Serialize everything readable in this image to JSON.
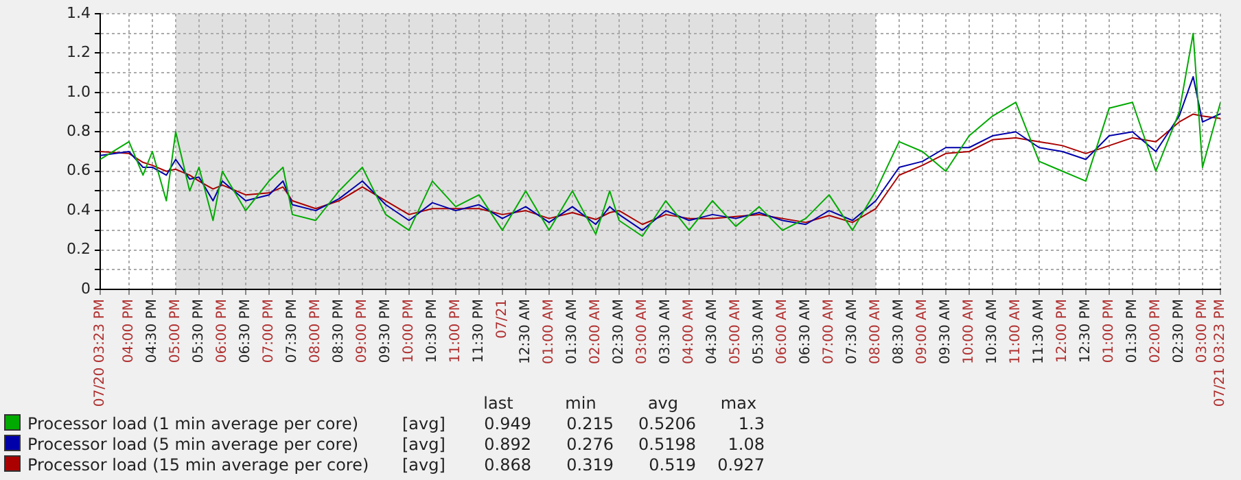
{
  "chart_data": {
    "type": "line",
    "x": [
      "--07-20T15:23",
      "--07-20T16:00",
      "--07-20T16:18",
      "--07-20T16:30",
      "--07-20T16:48",
      "--07-20T17:00",
      "--07-20T17:18",
      "--07-20T17:30",
      "--07-20T17:48",
      "--07-20T18:00",
      "--07-20T18:30",
      "--07-20T19:00",
      "--07-20T19:18",
      "--07-20T19:30",
      "--07-20T20:00",
      "--07-20T20:30",
      "--07-20T21:00",
      "--07-20T21:30",
      "--07-20T22:00",
      "--07-20T22:30",
      "--07-20T23:00",
      "--07-20T23:30",
      "--07-21T00:00",
      "--07-21T00:30",
      "--07-21T01:00",
      "--07-21T01:30",
      "--07-21T02:00",
      "--07-21T02:18",
      "--07-21T02:30",
      "--07-21T03:00",
      "--07-21T03:30",
      "--07-21T04:00",
      "--07-21T04:30",
      "--07-21T05:00",
      "--07-21T05:30",
      "--07-21T06:00",
      "--07-21T06:30",
      "--07-21T07:00",
      "--07-21T07:30",
      "--07-21T08:00",
      "--07-21T08:30",
      "--07-21T09:00",
      "--07-21T09:30",
      "--07-21T10:00",
      "--07-21T10:30",
      "--07-21T11:00",
      "--07-21T11:30",
      "--07-21T12:00",
      "--07-21T12:30",
      "--07-21T13:00",
      "--07-21T13:30",
      "--07-21T14:00",
      "--07-21T14:30",
      "--07-21T14:48",
      "--07-21T15:00",
      "--07-21T15:23"
    ],
    "series": [
      {
        "name": "Processor load (1 min average per core)",
        "color": "#00aa00",
        "values": [
          0.66,
          0.75,
          0.58,
          0.7,
          0.45,
          0.8,
          0.5,
          0.62,
          0.35,
          0.6,
          0.4,
          0.55,
          0.62,
          0.38,
          0.35,
          0.5,
          0.62,
          0.38,
          0.3,
          0.55,
          0.42,
          0.48,
          0.3,
          0.5,
          0.3,
          0.5,
          0.28,
          0.5,
          0.35,
          0.27,
          0.45,
          0.3,
          0.45,
          0.32,
          0.42,
          0.3,
          0.36,
          0.48,
          0.3,
          0.5,
          0.75,
          0.7,
          0.6,
          0.78,
          0.88,
          0.95,
          0.65,
          0.6,
          0.55,
          0.92,
          0.95,
          0.6,
          0.9,
          1.3,
          0.62,
          0.949
        ]
      },
      {
        "name": "Processor load (5 min average per core)",
        "color": "#0000aa",
        "values": [
          0.68,
          0.7,
          0.62,
          0.62,
          0.58,
          0.66,
          0.56,
          0.57,
          0.45,
          0.55,
          0.45,
          0.48,
          0.55,
          0.43,
          0.4,
          0.46,
          0.55,
          0.43,
          0.35,
          0.44,
          0.4,
          0.43,
          0.36,
          0.42,
          0.34,
          0.42,
          0.33,
          0.42,
          0.38,
          0.3,
          0.4,
          0.35,
          0.38,
          0.36,
          0.39,
          0.35,
          0.33,
          0.4,
          0.35,
          0.45,
          0.62,
          0.65,
          0.72,
          0.72,
          0.78,
          0.8,
          0.72,
          0.7,
          0.66,
          0.78,
          0.8,
          0.7,
          0.88,
          1.08,
          0.85,
          0.892
        ]
      },
      {
        "name": "Processor load (15 min average per core)",
        "color": "#aa0000",
        "values": [
          0.7,
          0.69,
          0.645,
          0.63,
          0.6,
          0.61,
          0.58,
          0.55,
          0.51,
          0.53,
          0.48,
          0.49,
          0.52,
          0.45,
          0.41,
          0.45,
          0.52,
          0.45,
          0.38,
          0.41,
          0.41,
          0.41,
          0.38,
          0.4,
          0.36,
          0.39,
          0.355,
          0.39,
          0.4,
          0.33,
          0.38,
          0.36,
          0.36,
          0.37,
          0.38,
          0.36,
          0.34,
          0.375,
          0.34,
          0.41,
          0.58,
          0.63,
          0.69,
          0.7,
          0.76,
          0.77,
          0.75,
          0.73,
          0.69,
          0.73,
          0.77,
          0.75,
          0.85,
          0.89,
          0.88,
          0.868
        ]
      }
    ],
    "xlim": [
      "--07-20T15:23",
      "--07-21T15:23"
    ],
    "xticks": [
      {
        "value": "--07-20T15:23",
        "label": "07/20 03:23 PM"
      },
      {
        "value": "--07-20T16:00",
        "label": "04:00 PM"
      },
      {
        "value": "--07-20T16:30",
        "label": "04:30 PM"
      },
      {
        "value": "--07-20T17:00",
        "label": "05:00 PM"
      },
      {
        "value": "--07-20T17:30",
        "label": "05:30 PM"
      },
      {
        "value": "--07-20T18:00",
        "label": "06:00 PM"
      },
      {
        "value": "--07-20T18:30",
        "label": "06:30 PM"
      },
      {
        "value": "--07-20T19:00",
        "label": "07:00 PM"
      },
      {
        "value": "--07-20T19:30",
        "label": "07:30 PM"
      },
      {
        "value": "--07-20T20:00",
        "label": "08:00 PM"
      },
      {
        "value": "--07-20T20:30",
        "label": "08:30 PM"
      },
      {
        "value": "--07-20T21:00",
        "label": "09:00 PM"
      },
      {
        "value": "--07-20T21:30",
        "label": "09:30 PM"
      },
      {
        "value": "--07-20T22:00",
        "label": "10:00 PM"
      },
      {
        "value": "--07-20T22:30",
        "label": "10:30 PM"
      },
      {
        "value": "--07-20T23:00",
        "label": "11:00 PM"
      },
      {
        "value": "--07-20T23:30",
        "label": "11:30 PM"
      },
      {
        "value": "--07-21T00:00",
        "label": "07/21"
      },
      {
        "value": "--07-21T00:30",
        "label": "12:30 AM"
      },
      {
        "value": "--07-21T01:00",
        "label": "01:00 AM"
      },
      {
        "value": "--07-21T01:30",
        "label": "01:30 AM"
      },
      {
        "value": "--07-21T02:00",
        "label": "02:00 AM"
      },
      {
        "value": "--07-21T02:30",
        "label": "02:30 AM"
      },
      {
        "value": "--07-21T03:00",
        "label": "03:00 AM"
      },
      {
        "value": "--07-21T03:30",
        "label": "03:30 AM"
      },
      {
        "value": "--07-21T04:00",
        "label": "04:00 AM"
      },
      {
        "value": "--07-21T04:30",
        "label": "04:30 AM"
      },
      {
        "value": "--07-21T05:00",
        "label": "05:00 AM"
      },
      {
        "value": "--07-21T05:30",
        "label": "05:30 AM"
      },
      {
        "value": "--07-21T06:00",
        "label": "06:00 AM"
      },
      {
        "value": "--07-21T06:30",
        "label": "06:30 AM"
      },
      {
        "value": "--07-21T07:00",
        "label": "07:00 AM"
      },
      {
        "value": "--07-21T07:30",
        "label": "07:30 AM"
      },
      {
        "value": "--07-21T08:00",
        "label": "08:00 AM"
      },
      {
        "value": "--07-21T08:30",
        "label": "08:30 AM"
      },
      {
        "value": "--07-21T09:00",
        "label": "09:00 AM"
      },
      {
        "value": "--07-21T09:30",
        "label": "09:30 AM"
      },
      {
        "value": "--07-21T10:00",
        "label": "10:00 AM"
      },
      {
        "value": "--07-21T10:30",
        "label": "10:30 AM"
      },
      {
        "value": "--07-21T11:00",
        "label": "11:00 AM"
      },
      {
        "value": "--07-21T11:30",
        "label": "11:30 AM"
      },
      {
        "value": "--07-21T12:00",
        "label": "12:00 PM"
      },
      {
        "value": "--07-21T12:30",
        "label": "12:30 PM"
      },
      {
        "value": "--07-21T13:00",
        "label": "01:00 PM"
      },
      {
        "value": "--07-21T13:30",
        "label": "01:30 PM"
      },
      {
        "value": "--07-21T14:00",
        "label": "02:00 PM"
      },
      {
        "value": "--07-21T14:30",
        "label": "02:30 PM"
      },
      {
        "value": "--07-21T15:00",
        "label": "03:00 PM"
      },
      {
        "value": "--07-21T15:23",
        "label": "07/21 03:23 PM"
      }
    ],
    "ylim": [
      0,
      1.4
    ],
    "yticks": [
      0,
      {
        "value": 0.1,
        "label": null
      },
      0.2,
      {
        "value": 0.3,
        "label": null
      },
      0.4,
      {
        "value": 0.5,
        "label": null
      },
      0.6,
      {
        "value": 0.7,
        "label": null
      },
      0.8,
      {
        "value": 0.9,
        "label": null
      },
      {
        "value": 1,
        "label": "1.0"
      },
      {
        "value": 1.1,
        "label": null
      },
      1.2,
      {
        "value": 1.3,
        "label": null
      },
      1.4
    ],
    "bands": [
      {
        "axis": "x",
        "from": "--07-20T17:00",
        "to": "--07-21T08:00",
        "color": "#e0e0e0"
      }
    ],
    "annotations": [
      "last",
      "min",
      "avg",
      "max",
      "[avg]",
      "0.949",
      "0.215",
      "0.5206",
      "1.3",
      "[avg]",
      "0.892",
      "0.276",
      "0.5198",
      "1.08",
      "[avg]",
      "0.868",
      "0.319",
      "0.519",
      "0.927"
    ],
    "grid": true,
    "legend": "bottom",
    "marker": "none",
    "line_style": "solid"
  }
}
